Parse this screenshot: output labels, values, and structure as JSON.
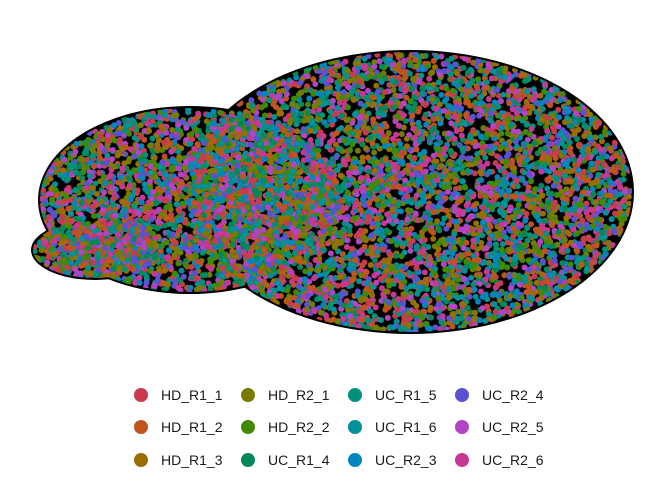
{
  "chart_data": {
    "type": "scatter",
    "title": "",
    "xlabel": "",
    "ylabel": "",
    "axes_visible": false,
    "grid": false,
    "point_outline": "#000000",
    "legend_position": "bottom",
    "series": [
      {
        "name": "HD_R1_1",
        "color": "#C83A4E"
      },
      {
        "name": "HD_R1_2",
        "color": "#C1541E"
      },
      {
        "name": "HD_R1_3",
        "color": "#9A6E00"
      },
      {
        "name": "HD_R2_1",
        "color": "#767C00"
      },
      {
        "name": "HD_R2_2",
        "color": "#3F8A00"
      },
      {
        "name": "UC_R1_4",
        "color": "#00875A"
      },
      {
        "name": "UC_R1_5",
        "color": "#00917C"
      },
      {
        "name": "UC_R1_6",
        "color": "#00919B"
      },
      {
        "name": "UC_R2_3",
        "color": "#0085BD"
      },
      {
        "name": "UC_R2_4",
        "color": "#5A52D2"
      },
      {
        "name": "UC_R2_5",
        "color": "#B145C4"
      },
      {
        "name": "UC_R2_6",
        "color": "#C73795"
      }
    ]
  }
}
